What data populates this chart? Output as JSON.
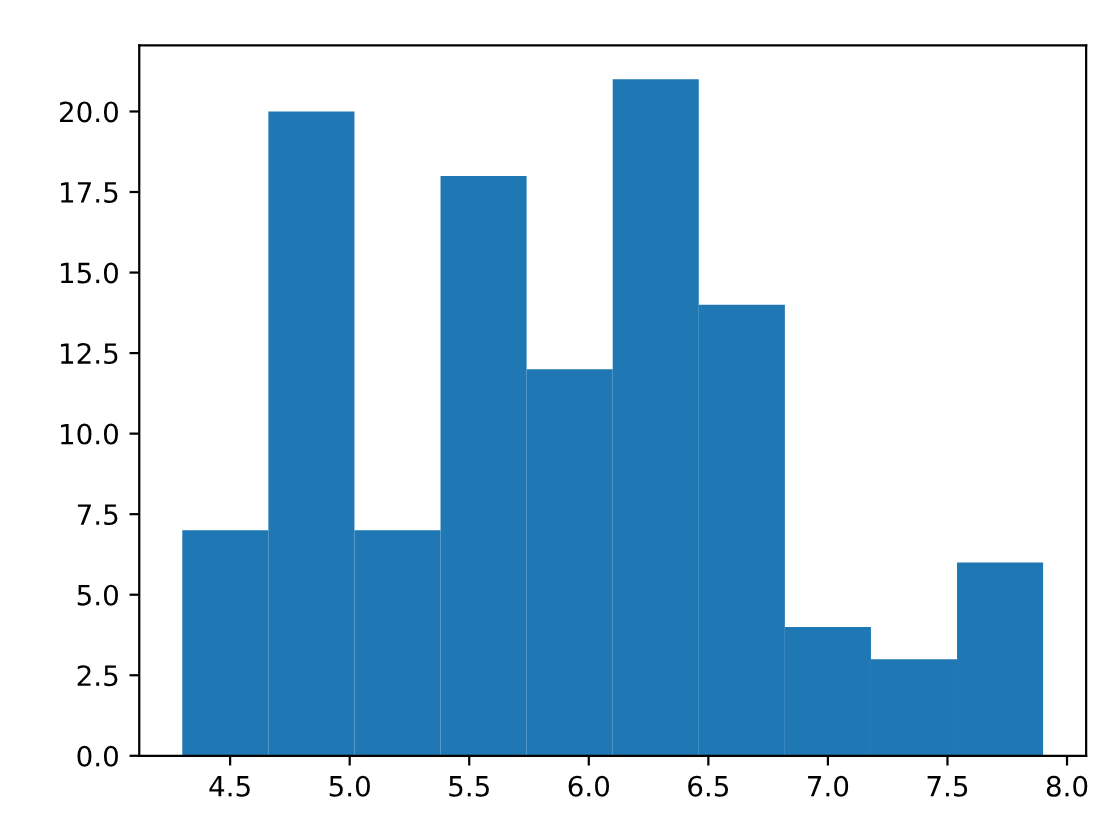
{
  "chart_data": {
    "type": "histogram",
    "bins": [
      4.3,
      4.66,
      5.02,
      5.38,
      5.74,
      6.1,
      6.46,
      6.82,
      7.18,
      7.54,
      7.9
    ],
    "values": [
      7,
      20,
      7,
      18,
      12,
      21,
      14,
      4,
      3,
      6
    ],
    "color": "#1f77b4",
    "xlim": [
      4.12,
      8.08
    ],
    "ylim": [
      0,
      22.05
    ],
    "xticks": [
      4.5,
      {
        "value": 5,
        "label": "5.0"
      },
      5.5,
      {
        "value": 6,
        "label": "6.0"
      },
      6.5,
      {
        "value": 7,
        "label": "7.0"
      },
      7.5,
      {
        "value": 8,
        "label": "8.0"
      }
    ],
    "yticks": [
      {
        "value": 0,
        "label": "0.0"
      },
      2.5,
      {
        "value": 5,
        "label": "5.0"
      },
      7.5,
      {
        "value": 10,
        "label": "10.0"
      },
      12.5,
      {
        "value": 15,
        "label": "15.0"
      },
      17.5,
      {
        "value": 20,
        "label": "20.0"
      }
    ],
    "grid": false
  }
}
